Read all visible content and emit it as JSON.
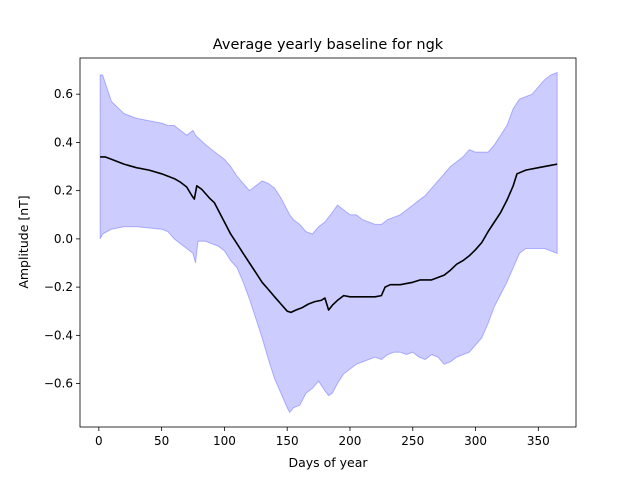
{
  "chart_data": {
    "type": "line",
    "title": "Average yearly baseline for ngk",
    "xlabel": "Days of year",
    "ylabel": "Amplitude [nT]",
    "xlim": [
      -15,
      380
    ],
    "ylim": [
      -0.78,
      0.75
    ],
    "xticks": [
      0,
      50,
      100,
      150,
      200,
      250,
      300,
      350
    ],
    "yticks": [
      -0.6,
      -0.4,
      -0.2,
      0.0,
      0.2,
      0.4,
      0.6
    ],
    "ytick_labels": [
      "−0.6",
      "−0.4",
      "−0.2",
      "0.0",
      "0.2",
      "0.4",
      "0.6"
    ],
    "grid": false,
    "legend": "none",
    "colors": {
      "mean_line": "#000000",
      "band_fill": "#0000ff",
      "band_opacity": 0.2
    },
    "series": [
      {
        "kind": "line",
        "x": [
          1,
          5,
          10,
          20,
          30,
          40,
          50,
          60,
          65,
          70,
          74,
          76,
          78,
          82,
          88,
          92,
          96,
          100,
          105,
          110,
          115,
          120,
          125,
          130,
          135,
          140,
          145,
          150,
          153,
          157,
          162,
          167,
          172,
          177,
          180,
          183,
          186,
          190,
          195,
          200,
          210,
          220,
          225,
          228,
          232,
          240,
          250,
          256,
          265,
          275,
          280,
          285,
          290,
          295,
          300,
          305,
          310,
          315,
          320,
          325,
          330,
          333,
          340,
          350,
          360,
          365
        ],
        "y": [
          0.34,
          0.34,
          0.33,
          0.31,
          0.295,
          0.285,
          0.27,
          0.25,
          0.235,
          0.215,
          0.18,
          0.165,
          0.22,
          0.205,
          0.17,
          0.15,
          0.11,
          0.07,
          0.02,
          -0.02,
          -0.06,
          -0.1,
          -0.14,
          -0.18,
          -0.21,
          -0.24,
          -0.27,
          -0.3,
          -0.305,
          -0.295,
          -0.285,
          -0.27,
          -0.26,
          -0.255,
          -0.245,
          -0.295,
          -0.275,
          -0.255,
          -0.235,
          -0.24,
          -0.24,
          -0.24,
          -0.235,
          -0.2,
          -0.19,
          -0.19,
          -0.18,
          -0.17,
          -0.17,
          -0.15,
          -0.13,
          -0.105,
          -0.09,
          -0.07,
          -0.045,
          -0.015,
          0.03,
          0.07,
          0.11,
          0.16,
          0.22,
          0.27,
          0.285,
          0.295,
          0.305,
          0.31
        ]
      },
      {
        "kind": "band",
        "x": [
          1,
          3,
          10,
          20,
          30,
          40,
          50,
          55,
          60,
          65,
          70,
          75,
          77,
          79,
          85,
          90,
          95,
          100,
          105,
          110,
          115,
          120,
          125,
          130,
          135,
          140,
          145,
          150,
          152,
          155,
          160,
          165,
          170,
          175,
          180,
          183,
          186,
          190,
          195,
          200,
          205,
          210,
          220,
          225,
          230,
          235,
          240,
          245,
          250,
          255,
          260,
          265,
          270,
          275,
          280,
          285,
          290,
          295,
          300,
          305,
          310,
          315,
          320,
          325,
          330,
          335,
          340,
          345,
          350,
          355,
          360,
          365
        ],
        "upper": [
          0.68,
          0.68,
          0.57,
          0.52,
          0.5,
          0.49,
          0.48,
          0.47,
          0.47,
          0.45,
          0.43,
          0.45,
          0.43,
          0.42,
          0.39,
          0.37,
          0.35,
          0.33,
          0.3,
          0.26,
          0.23,
          0.2,
          0.22,
          0.24,
          0.23,
          0.21,
          0.17,
          0.12,
          0.1,
          0.08,
          0.06,
          0.03,
          0.02,
          0.05,
          0.07,
          0.09,
          0.11,
          0.14,
          0.12,
          0.1,
          0.1,
          0.08,
          0.06,
          0.06,
          0.08,
          0.09,
          0.1,
          0.12,
          0.14,
          0.16,
          0.18,
          0.21,
          0.24,
          0.27,
          0.3,
          0.32,
          0.34,
          0.37,
          0.36,
          0.36,
          0.36,
          0.39,
          0.43,
          0.47,
          0.54,
          0.58,
          0.59,
          0.6,
          0.63,
          0.66,
          0.68,
          0.69
        ],
        "lower": [
          0.0,
          0.02,
          0.04,
          0.05,
          0.05,
          0.045,
          0.04,
          0.03,
          0.0,
          -0.02,
          -0.04,
          -0.06,
          -0.1,
          -0.01,
          -0.01,
          -0.02,
          -0.03,
          -0.05,
          -0.09,
          -0.12,
          -0.18,
          -0.25,
          -0.33,
          -0.41,
          -0.5,
          -0.58,
          -0.64,
          -0.7,
          -0.72,
          -0.7,
          -0.69,
          -0.64,
          -0.62,
          -0.59,
          -0.63,
          -0.65,
          -0.64,
          -0.6,
          -0.56,
          -0.54,
          -0.52,
          -0.51,
          -0.49,
          -0.5,
          -0.48,
          -0.47,
          -0.47,
          -0.48,
          -0.47,
          -0.49,
          -0.5,
          -0.48,
          -0.49,
          -0.52,
          -0.51,
          -0.49,
          -0.48,
          -0.47,
          -0.44,
          -0.41,
          -0.35,
          -0.28,
          -0.23,
          -0.18,
          -0.12,
          -0.06,
          -0.04,
          -0.04,
          -0.04,
          -0.04,
          -0.05,
          -0.06
        ]
      }
    ]
  }
}
